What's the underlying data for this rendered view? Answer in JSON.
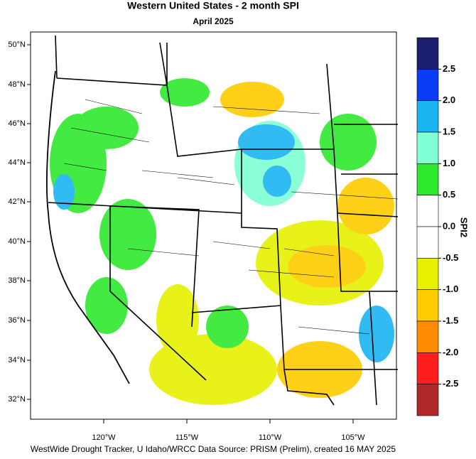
{
  "header": {
    "title": "Western United States - 2 month SPI",
    "subtitle": "April 2025"
  },
  "axes": {
    "lat_labels": [
      "50°N",
      "48°N",
      "46°N",
      "44°N",
      "42°N",
      "40°N",
      "38°N",
      "36°N",
      "34°N",
      "32°N"
    ],
    "lon_labels": [
      "120°W",
      "115°W",
      "110°W",
      "105°W"
    ]
  },
  "legend": {
    "title": "SPI2",
    "colors": [
      "#1c1f6e",
      "#0a3cf5",
      "#1ab4f2",
      "#7fffd2",
      "#2ee82e",
      "#ffffff",
      "#ffffff",
      "#e6f000",
      "#ffcc00",
      "#ff8c00",
      "#ff1e1e",
      "#b02828"
    ],
    "labels": [
      "2.5",
      "2.0",
      "1.5",
      "1.0",
      "0.5",
      "0.0",
      "-0.5",
      "-1.0",
      "-1.5",
      "-2.0",
      "-2.5"
    ]
  },
  "footer": {
    "credit": "WestWide Drought Tracker, U Idaho/WRCC Data Source: PRISM (Prelim), created 16 MAY 2025"
  }
}
